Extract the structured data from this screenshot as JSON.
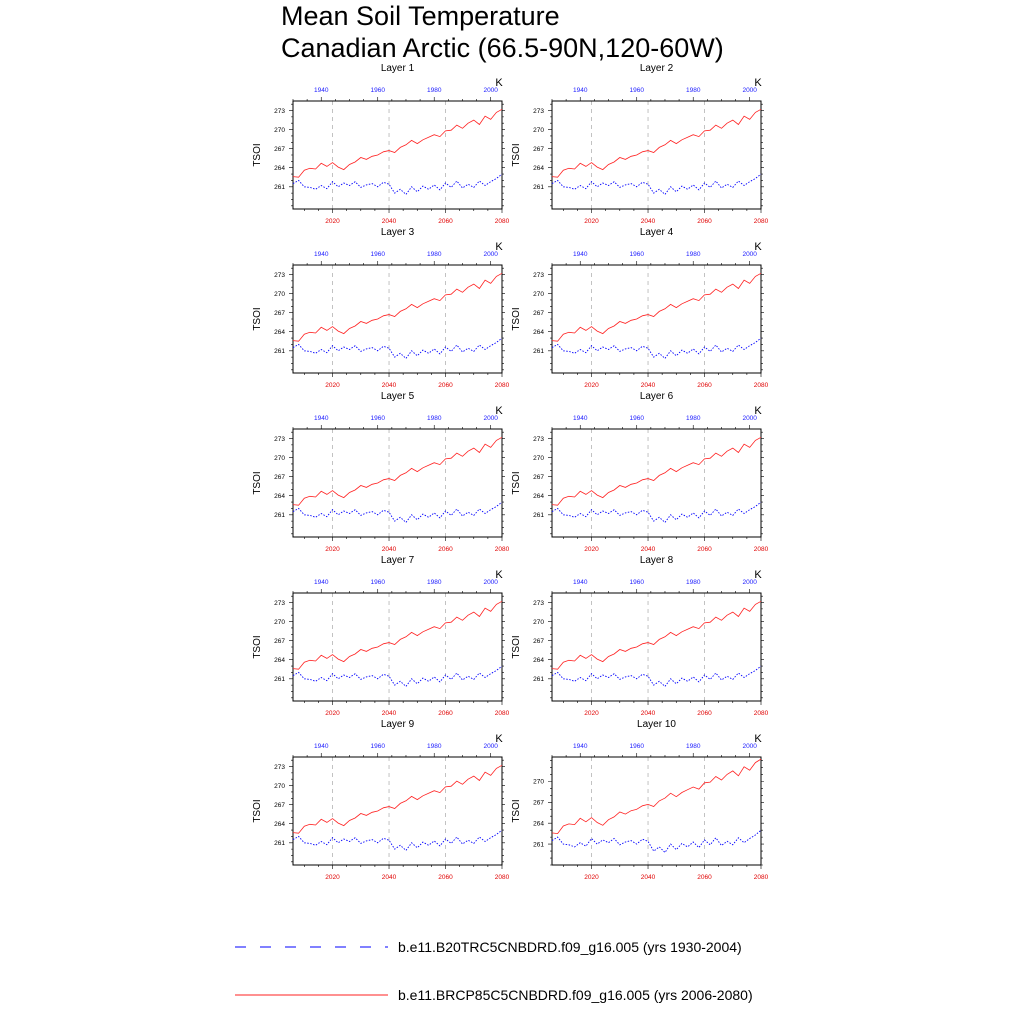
{
  "title_lines": [
    "Mean Soil Temperature",
    "Canadian Arctic (66.5-90N,120-60W)"
  ],
  "colors": {
    "historical": "#0000ff",
    "future": "#ff2222",
    "grid": "#999999"
  },
  "legend": [
    {
      "label": "b.e11.B20TRC5CNBDRD.f09_g16.005 (yrs 1930-2004)",
      "style": "dashed",
      "color": "#0000ff"
    },
    {
      "label": "b.e11.BRCP85C5CNBDRD.f09_g16.005 (yrs 2006-2080)",
      "style": "solid",
      "color": "#ff2222"
    }
  ],
  "chart_data": {
    "type": "line",
    "ylabel": "TSOI",
    "units": "K",
    "x_bottom": {
      "range": [
        2006,
        2080
      ],
      "ticks": [
        2020,
        2040,
        2060,
        2080
      ]
    },
    "x_top": {
      "range": [
        1930,
        2004
      ],
      "ticks": [
        1940,
        1960,
        1980,
        2000
      ]
    },
    "grid": "vertical dashed at bottom-axis ticks",
    "panels": [
      {
        "title": "Layer 1",
        "ylim": [
          257.5,
          274.5
        ],
        "yticks": [
          261,
          264,
          267,
          270,
          273
        ]
      },
      {
        "title": "Layer 2",
        "ylim": [
          257.5,
          274.5
        ],
        "yticks": [
          261,
          264,
          267,
          270,
          273
        ]
      },
      {
        "title": "Layer 3",
        "ylim": [
          257.5,
          274.5
        ],
        "yticks": [
          261,
          264,
          267,
          270,
          273
        ]
      },
      {
        "title": "Layer 4",
        "ylim": [
          257.5,
          274.5
        ],
        "yticks": [
          261,
          264,
          267,
          270,
          273
        ]
      },
      {
        "title": "Layer 5",
        "ylim": [
          257.5,
          274.5
        ],
        "yticks": [
          261,
          264,
          267,
          270,
          273
        ]
      },
      {
        "title": "Layer 6",
        "ylim": [
          257.5,
          274.5
        ],
        "yticks": [
          261,
          264,
          267,
          270,
          273
        ]
      },
      {
        "title": "Layer 7",
        "ylim": [
          257.5,
          274.5
        ],
        "yticks": [
          261,
          264,
          267,
          270,
          273
        ]
      },
      {
        "title": "Layer 8",
        "ylim": [
          257.5,
          274.5
        ],
        "yticks": [
          261,
          264,
          267,
          270,
          273
        ]
      },
      {
        "title": "Layer 9",
        "ylim": [
          257.5,
          274.5
        ],
        "yticks": [
          261,
          264,
          267,
          270,
          273
        ]
      },
      {
        "title": "Layer 10",
        "ylim": [
          258,
          273.5
        ],
        "yticks": [
          261,
          264,
          267,
          270
        ]
      }
    ],
    "series": [
      {
        "name": "b.e11.B20TRC5CNBDRD.f09_g16.005 (yrs 1930-2004)",
        "axis": "top",
        "x": [
          1930,
          1932,
          1934,
          1936,
          1938,
          1940,
          1942,
          1944,
          1946,
          1948,
          1950,
          1952,
          1954,
          1956,
          1958,
          1960,
          1962,
          1964,
          1966,
          1968,
          1970,
          1972,
          1974,
          1976,
          1978,
          1980,
          1982,
          1984,
          1986,
          1988,
          1990,
          1992,
          1994,
          1996,
          1998,
          2000,
          2002,
          2004
        ],
        "y": [
          261.5,
          262.0,
          261.0,
          260.9,
          260.6,
          261.2,
          260.7,
          261.8,
          261.0,
          261.6,
          261.2,
          261.8,
          260.9,
          261.3,
          261.5,
          261.0,
          261.7,
          261.4,
          260.0,
          260.6,
          259.8,
          261.0,
          260.2,
          261.1,
          260.6,
          261.3,
          260.5,
          261.6,
          260.9,
          261.9,
          260.8,
          261.4,
          260.9,
          261.9,
          261.2,
          261.8,
          262.3,
          263.0
        ]
      },
      {
        "name": "b.e11.BRCP85C5CNBDRD.f09_g16.005 (yrs 2006-2080)",
        "axis": "bottom",
        "x": [
          2006,
          2008,
          2010,
          2012,
          2014,
          2016,
          2018,
          2020,
          2022,
          2024,
          2026,
          2028,
          2030,
          2032,
          2034,
          2036,
          2038,
          2040,
          2042,
          2044,
          2046,
          2048,
          2050,
          2052,
          2054,
          2056,
          2058,
          2060,
          2062,
          2064,
          2066,
          2068,
          2070,
          2072,
          2074,
          2076,
          2078,
          2080
        ],
        "y": [
          262.6,
          262.5,
          263.6,
          263.9,
          263.8,
          264.7,
          264.2,
          264.8,
          264.1,
          263.7,
          264.5,
          264.9,
          265.6,
          265.3,
          265.8,
          266.0,
          266.5,
          266.7,
          266.4,
          267.2,
          267.6,
          268.3,
          267.8,
          268.4,
          268.8,
          269.2,
          268.9,
          269.8,
          269.9,
          270.7,
          270.2,
          271.0,
          271.5,
          270.8,
          272.1,
          271.6,
          272.7,
          273.2
        ]
      }
    ]
  }
}
